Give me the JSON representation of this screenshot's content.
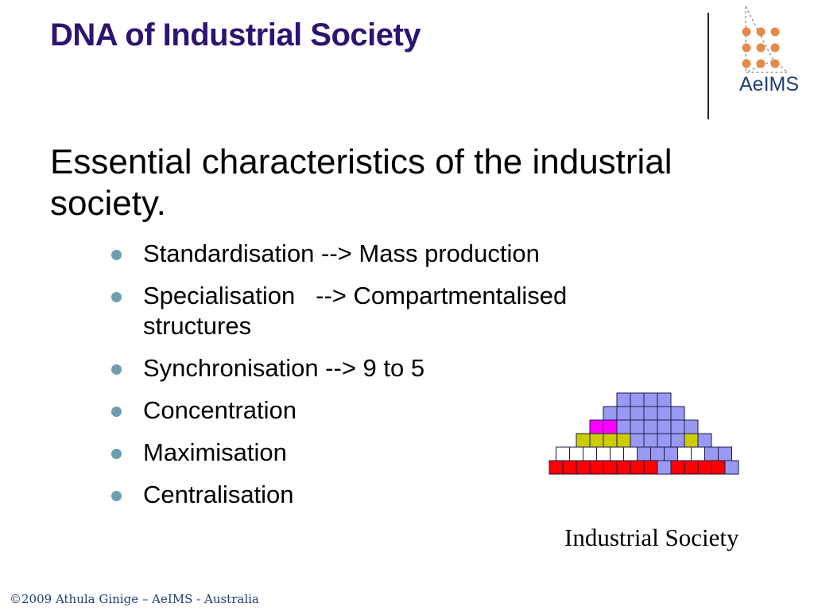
{
  "slide": {
    "title": "DNA of Industrial Society",
    "heading": "Essential characteristics of the industrial society.",
    "bullets": [
      "Standardisation --> Mass production",
      "Specialisation   --> Compartmentalised structures",
      "Synchronisation --> 9 to 5",
      "Concentration",
      "Maximisation",
      "Centralisation"
    ],
    "figure_caption": "Industrial Society",
    "footer": "©2009 Athula Ginige – AeIMS - Australia"
  },
  "logo": {
    "text": "AeIMS",
    "dot_color": "#e8894a",
    "text_color": "#1f3f73"
  },
  "pyramid": {
    "colors": {
      "blue": "#9999f2",
      "red": "#ff0000",
      "magenta": "#ff00ff",
      "olive": "#cccc00",
      "white": "#ffffff"
    },
    "rows": [
      "....BBBB....",
      "...BBBBBB...",
      "..MMBBBBBB..",
      ".YYYYBBBBYB.",
      "WWWWWWBBBWWBB",
      "RRRRRRRRBRRRRB"
    ]
  }
}
